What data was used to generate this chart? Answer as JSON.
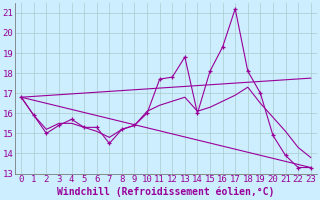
{
  "bg_color": "#cceeff",
  "line_color": "#990099",
  "grid_color": "#aacccc",
  "xlim": [
    -0.5,
    23.5
  ],
  "ylim": [
    13,
    21.5
  ],
  "xticks": [
    0,
    1,
    2,
    3,
    4,
    5,
    6,
    7,
    8,
    9,
    10,
    11,
    12,
    13,
    14,
    15,
    16,
    17,
    18,
    19,
    20,
    21,
    22,
    23
  ],
  "yticks": [
    13,
    14,
    15,
    16,
    17,
    18,
    19,
    20,
    21
  ],
  "xlabel": "Windchill (Refroidissement éolien,°C)",
  "series1_x": [
    0,
    1,
    2,
    3,
    4,
    5,
    6,
    7,
    8,
    9,
    10,
    11,
    12,
    13,
    14,
    15,
    16,
    17,
    18,
    19,
    20,
    21,
    22,
    23
  ],
  "series1_y": [
    16.8,
    15.9,
    15.0,
    15.4,
    15.7,
    15.3,
    15.3,
    14.5,
    15.2,
    15.4,
    16.0,
    17.7,
    17.8,
    18.8,
    16.0,
    18.1,
    19.3,
    21.2,
    18.1,
    17.0,
    14.9,
    13.9,
    13.3,
    13.3
  ],
  "series2_x": [
    0,
    1,
    2,
    3,
    4,
    5,
    6,
    7,
    8,
    9,
    10,
    11,
    12,
    13,
    14,
    15,
    16,
    17,
    18,
    19,
    20,
    21,
    22,
    23
  ],
  "series2_y": [
    16.8,
    15.9,
    15.2,
    15.5,
    15.5,
    15.3,
    15.1,
    14.8,
    15.2,
    15.4,
    16.1,
    16.4,
    16.6,
    16.8,
    16.1,
    16.3,
    16.6,
    16.9,
    17.3,
    16.5,
    15.8,
    15.1,
    14.3,
    13.8
  ],
  "series3_x": [
    0,
    23
  ],
  "series3_y": [
    16.8,
    17.75
  ],
  "series4_x": [
    0,
    23
  ],
  "series4_y": [
    16.8,
    13.3
  ],
  "font_size": 6.5,
  "xlabel_fontsize": 7
}
